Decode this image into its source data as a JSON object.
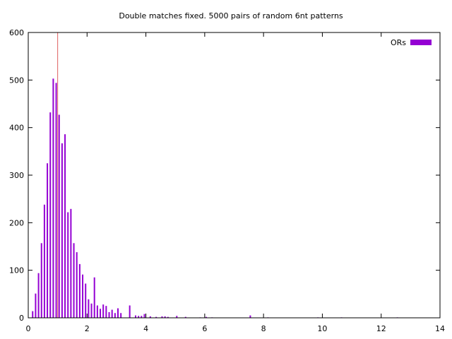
{
  "chart_data": {
    "type": "bar",
    "title": "Double matches fixed. 5000 pairs of random 6nt patterns",
    "xlabel": "",
    "ylabel": "",
    "xlim": [
      0,
      14
    ],
    "ylim": [
      0,
      600
    ],
    "xticks": [
      0,
      2,
      4,
      6,
      8,
      10,
      12,
      14
    ],
    "yticks": [
      0,
      100,
      200,
      300,
      400,
      500,
      600
    ],
    "grid": false,
    "legend_position": "top-right",
    "series": [
      {
        "name": "ORs",
        "color": "#9400d3",
        "x": [
          0.15,
          0.25,
          0.35,
          0.45,
          0.55,
          0.65,
          0.75,
          0.85,
          0.95,
          1.05,
          1.15,
          1.25,
          1.35,
          1.45,
          1.55,
          1.65,
          1.75,
          1.85,
          1.95,
          2.05,
          2.15,
          2.25,
          2.35,
          2.45,
          2.55,
          2.65,
          2.75,
          2.85,
          2.95,
          3.05,
          3.15,
          3.45,
          3.65,
          3.75,
          3.85,
          3.95,
          4.15,
          4.35,
          4.55,
          4.65,
          4.75,
          5.05,
          5.35,
          5.85,
          6.05,
          6.25,
          7.55,
          8.15,
          9.85,
          10.65,
          12.55
        ],
        "values": [
          14,
          51,
          94,
          157,
          238,
          325,
          432,
          503,
          494,
          427,
          367,
          386,
          222,
          229,
          157,
          138,
          113,
          91,
          72,
          39,
          30,
          85,
          26,
          19,
          28,
          25,
          12,
          17,
          10,
          20,
          10,
          26,
          5,
          4,
          4,
          8,
          3,
          2,
          3,
          3,
          2,
          4,
          2,
          1,
          2,
          1,
          5,
          1,
          1,
          1,
          1
        ]
      }
    ],
    "reference_line": {
      "x": 1,
      "color": "#e06060"
    }
  }
}
